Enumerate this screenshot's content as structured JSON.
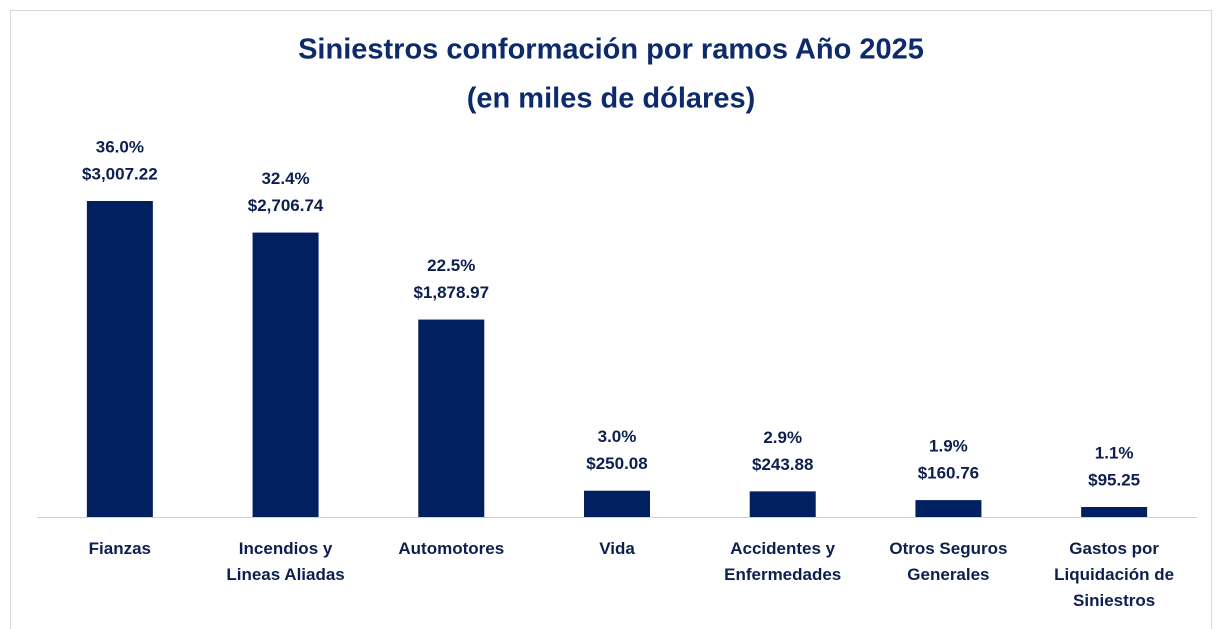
{
  "chart_data": {
    "type": "bar",
    "title": "Siniestros conformación por ramos Año 2025",
    "subtitle": "(en miles de dólares)",
    "categories": [
      "Fianzas",
      "Incendios y Lineas Aliadas",
      "Automotores",
      "Vida",
      "Accidentes y Enfermedades",
      "Otros Seguros Generales",
      "Gastos por Liquidación de Siniestros"
    ],
    "values": [
      3007.22,
      2706.74,
      1878.97,
      250.08,
      243.88,
      160.76,
      95.25
    ],
    "value_labels": [
      "$3,007.22",
      "$2,706.74",
      "$1,878.97",
      "$250.08",
      "$243.88",
      "$160.76",
      "$95.25"
    ],
    "percentages": [
      36.0,
      32.4,
      22.5,
      3.0,
      2.9,
      1.9,
      1.1
    ],
    "percentage_labels": [
      "36.0%",
      "32.4%",
      "22.5%",
      "3.0%",
      "2.9%",
      "1.9%",
      "1.1%"
    ],
    "color": "#002060"
  }
}
